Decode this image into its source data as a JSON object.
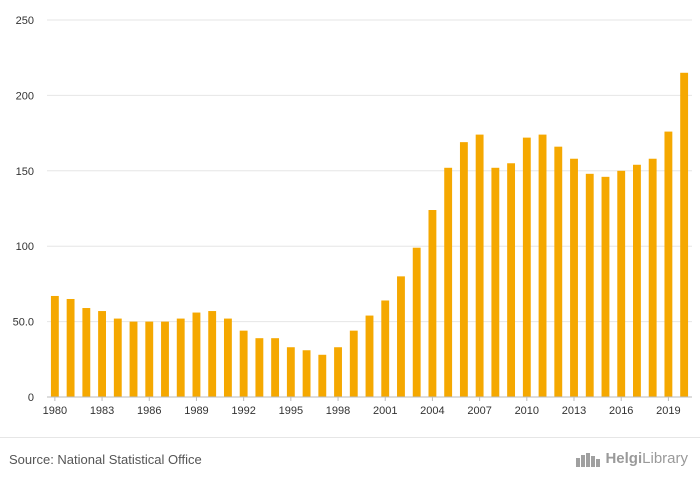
{
  "chart_data": {
    "type": "bar",
    "title": "",
    "xlabel": "",
    "ylabel": "",
    "ylim": [
      0,
      250
    ],
    "y_ticks": [
      "0",
      "50.0",
      "100",
      "150",
      "200",
      "250"
    ],
    "x_tick_labels": [
      "1980",
      "1983",
      "1986",
      "1989",
      "1992",
      "1995",
      "1998",
      "2001",
      "2004",
      "2007",
      "2010",
      "2013",
      "2016",
      "2019"
    ],
    "grid": true,
    "bar_color": "#f5a800",
    "categories": [
      1980,
      1981,
      1982,
      1983,
      1984,
      1985,
      1986,
      1987,
      1988,
      1989,
      1990,
      1991,
      1992,
      1993,
      1994,
      1995,
      1996,
      1997,
      1998,
      1999,
      2000,
      2001,
      2002,
      2003,
      2004,
      2005,
      2006,
      2007,
      2008,
      2009,
      2010,
      2011,
      2012,
      2013,
      2014,
      2015,
      2016,
      2017,
      2018,
      2019,
      2020
    ],
    "values": [
      67,
      65,
      59,
      57,
      52,
      50,
      50,
      50,
      52,
      56,
      57,
      52,
      44,
      39,
      39,
      33,
      31,
      28,
      33,
      44,
      54,
      64,
      80,
      99,
      124,
      152,
      169,
      174,
      152,
      155,
      172,
      174,
      166,
      158,
      148,
      146,
      150,
      154,
      158,
      176,
      215
    ]
  },
  "footer": {
    "source": "Source: National Statistical Office",
    "logo_part1": "Helgi",
    "logo_part2": "Library"
  }
}
